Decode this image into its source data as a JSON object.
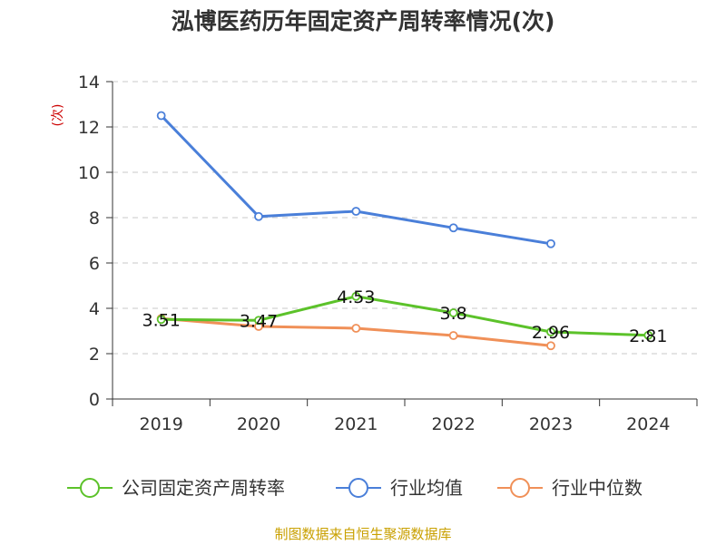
{
  "title": "泓博医药历年固定资产周转率情况(次)",
  "source": "制图数据来自恒生聚源数据库",
  "colors": {
    "title": "#333333",
    "ylabel": "#cc0000",
    "source": "#c9a000",
    "grid": "#c8c8c8",
    "axis": "#333333"
  },
  "chart_data": {
    "type": "line",
    "ylabel": "(次)",
    "xlabel": "",
    "categories": [
      "2019",
      "2020",
      "2021",
      "2022",
      "2023",
      "2024"
    ],
    "ylim": [
      0,
      14
    ],
    "yticks": [
      0,
      2,
      4,
      6,
      8,
      10,
      12,
      14
    ],
    "grid": true,
    "legend_position": "bottom",
    "series": [
      {
        "name": "公司固定资产周转率",
        "color": "#5cc22a",
        "values": [
          3.51,
          3.47,
          4.53,
          3.8,
          2.96,
          2.81
        ],
        "labels": [
          "3.51",
          "3.47",
          "4.53",
          "3.8",
          "2.96",
          "2.81"
        ]
      },
      {
        "name": "行业均值",
        "color": "#4a7fd9",
        "values": [
          12.5,
          8.05,
          8.28,
          7.55,
          6.85,
          null
        ]
      },
      {
        "name": "行业中位数",
        "color": "#f09058",
        "values": [
          3.55,
          3.2,
          3.12,
          2.8,
          2.35,
          null
        ]
      }
    ]
  }
}
